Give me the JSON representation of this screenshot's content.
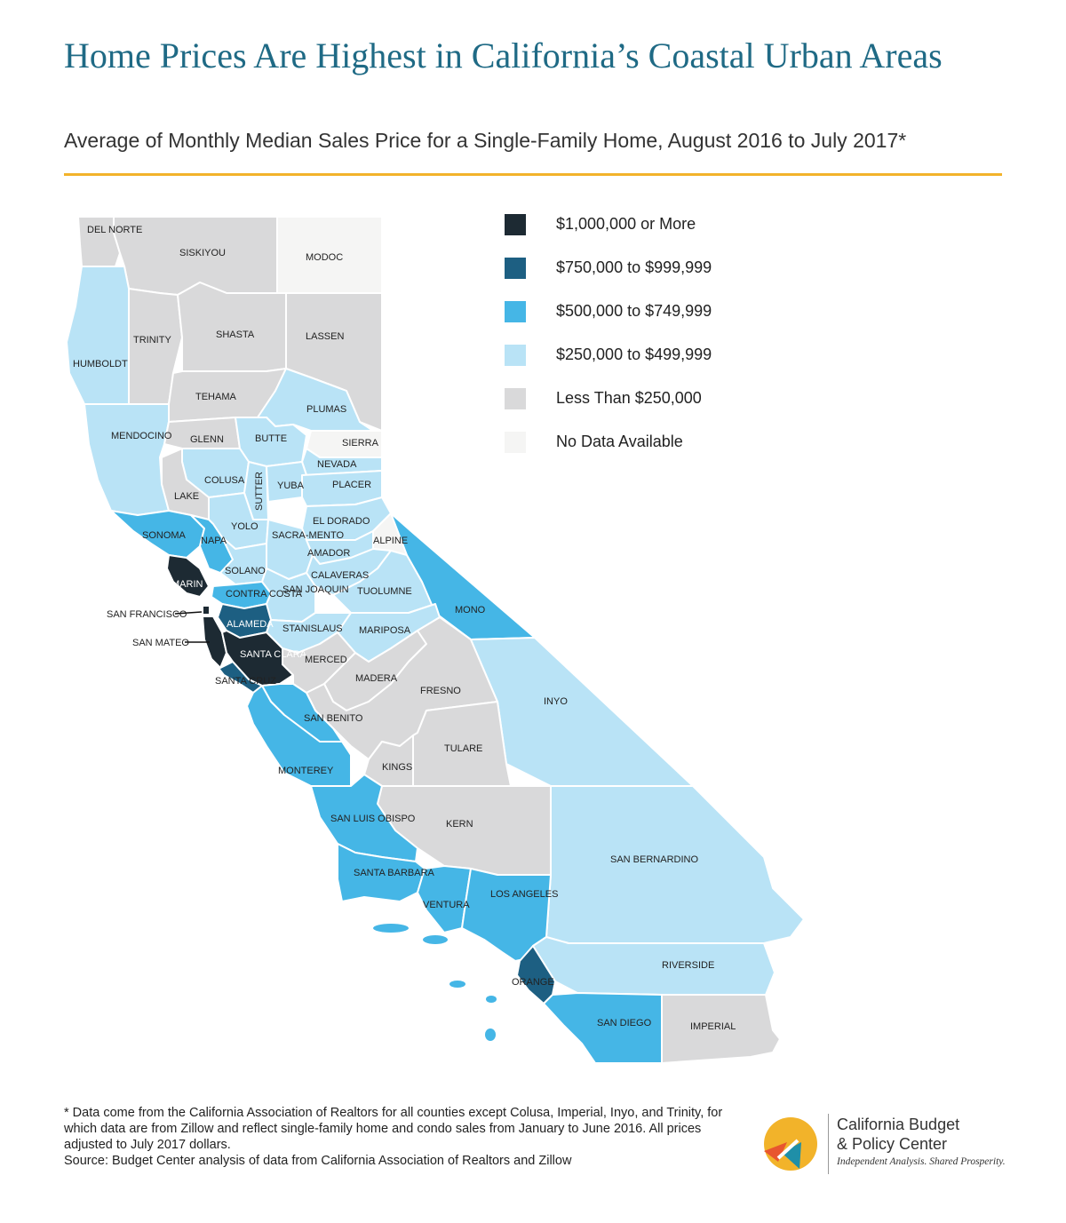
{
  "title": "Home Prices Are Highest in California’s Coastal Urban Areas",
  "subtitle": "Average of Monthly Median Sales Price for a Single-Family Home, August 2016 to July 2017*",
  "colors": {
    "tier1": "#1d2a33",
    "tier2": "#1d5f82",
    "tier3": "#45b6e6",
    "tier4": "#b9e3f6",
    "tier5": "#d9d9da",
    "tier6": "#f5f5f4",
    "accent": "#f2b32a",
    "title": "#1f6a85"
  },
  "legend": [
    {
      "label": "$1,000,000 or More",
      "color": "#1d2a33"
    },
    {
      "label": "$750,000 to $999,999",
      "color": "#1d5f82"
    },
    {
      "label": "$500,000 to $749,999",
      "color": "#45b6e6"
    },
    {
      "label": "$250,000 to $499,999",
      "color": "#b9e3f6"
    },
    {
      "label": "Less Than $250,000",
      "color": "#d9d9da"
    },
    {
      "label": "No Data Available",
      "color": "#f5f5f4"
    }
  ],
  "counties": {
    "del_norte": "DEL NORTE",
    "siskiyou": "SISKIYOU",
    "modoc": "MODOC",
    "humboldt": "HUMBOLDT",
    "trinity": "TRINITY",
    "shasta": "SHASTA",
    "lassen": "LASSEN",
    "tehama": "TEHAMA",
    "plumas": "PLUMAS",
    "mendocino": "MENDOCINO",
    "glenn": "GLENN",
    "butte": "BUTTE",
    "sierra": "SIERRA",
    "nevada": "NEVADA",
    "colusa": "COLUSA",
    "sutter": "SUTTER",
    "yuba": "YUBA",
    "placer": "PLACER",
    "lake": "LAKE",
    "el_dorado": "EL DORADO",
    "sonoma": "SONOMA",
    "napa": "NAPA",
    "yolo": "YOLO",
    "sacramento": "SACRA-MENTO",
    "alpine": "ALPINE",
    "amador": "AMADOR",
    "solano": "SOLANO",
    "marin": "MARIN",
    "calaveras": "CALAVERAS",
    "contra_costa": "CONTRA COSTA",
    "san_joaquin": "SAN JOAQUIN",
    "tuolumne": "TUOLUMNE",
    "mono": "MONO",
    "san_francisco": "SAN FRANCISCO",
    "alameda": "ALAMEDA",
    "stanislaus": "STANISLAUS",
    "mariposa": "MARIPOSA",
    "san_mateo": "SAN MATEO",
    "santa_clara": "SANTA CLARA",
    "merced": "MERCED",
    "madera": "MADERA",
    "santa_cruz": "SANTA CRUZ",
    "fresno": "FRESNO",
    "inyo": "INYO",
    "san_benito": "SAN BENITO",
    "tulare": "TULARE",
    "kings": "KINGS",
    "monterey": "MONTEREY",
    "kern": "KERN",
    "san_luis_obispo": "SAN LUIS OBISPO",
    "san_bernardino": "SAN BERNARDINO",
    "santa_barbara": "SANTA BARBARA",
    "ventura": "VENTURA",
    "los_angeles": "LOS ANGELES",
    "riverside": "RIVERSIDE",
    "orange": "ORANGE",
    "san_diego": "SAN DIEGO",
    "imperial": "IMPERIAL"
  },
  "footnote": {
    "line1": "* Data come from the California Association of Realtors for all counties except Colusa, Imperial, Inyo, and Trinity, for which data are from Zillow and reflect single-family home and condo sales from January to June 2016. All prices adjusted to July 2017 dollars.",
    "source": "Source: Budget Center analysis of data from California Association of Realtors and Zillow"
  },
  "logo": {
    "line1": "California Budget",
    "line2": "& Policy Center",
    "tagline": "Independent Analysis. Shared Prosperity."
  }
}
